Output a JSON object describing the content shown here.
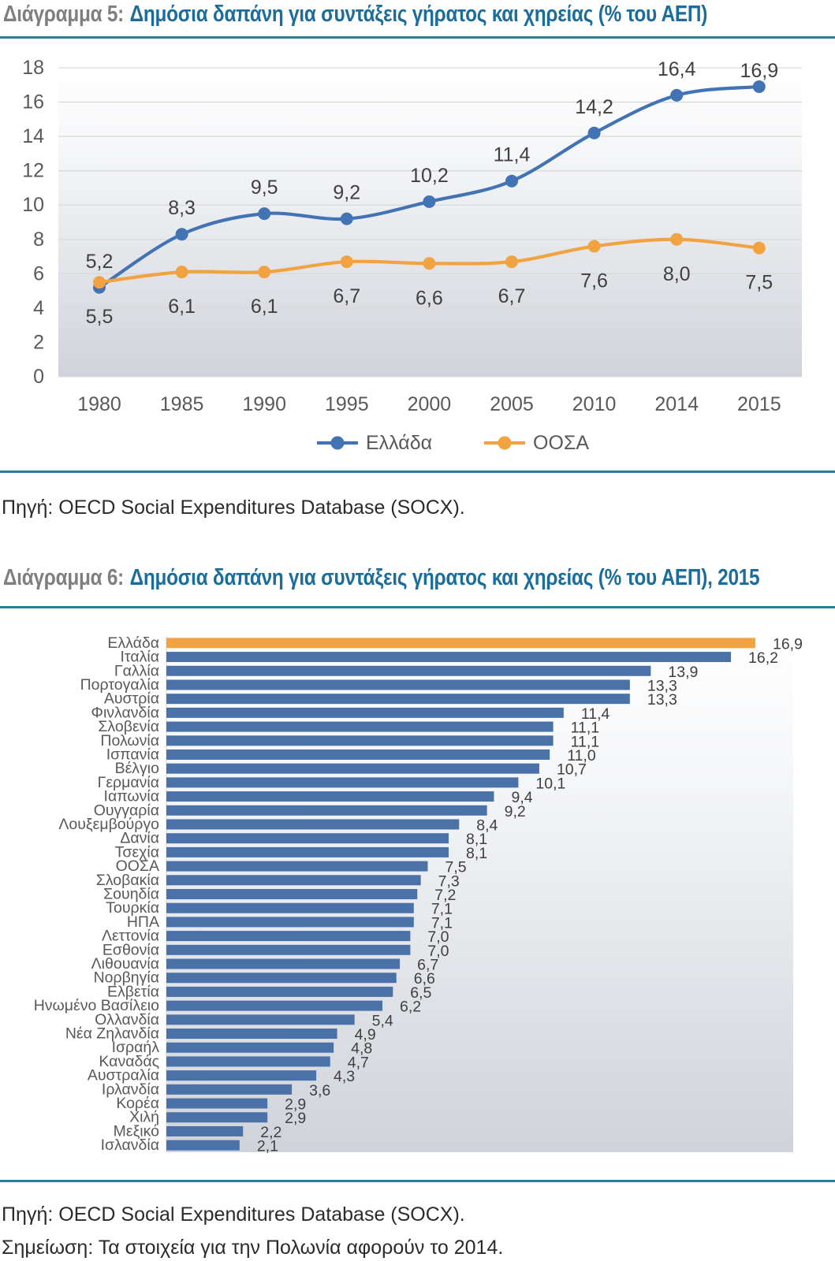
{
  "page": {
    "chart5": {
      "title_prefix": "Διάγραμμα 5:",
      "title_main": "Δημόσια δαπάνη για συντάξεις γήρατος και χηρείας (% του ΑΕΠ)",
      "source": "Πηγή: OECD Social Expenditures Database (SOCX)."
    },
    "chart6": {
      "title_prefix": "Διάγραμμα 6:",
      "title_main": "Δημόσια δαπάνη για συντάξεις γήρατος και χηρείας (% του ΑΕΠ), 2015",
      "source": "Πηγή: OECD Social Expenditures Database (SOCX).",
      "note": "Σημείωση: Τα στοιχεία για την Πολωνία αφορούν το 2014."
    }
  },
  "colors": {
    "title_accent": "#1b6d9c",
    "title_prefix": "#7f7f7f",
    "divider": "#27809b",
    "greece_line": "#4273b4",
    "oecd_line": "#f2a341",
    "bar_blue": "#4a72a8",
    "bar_highlight": "#f2a341",
    "gridline": "#d9d9d9",
    "axis_text": "#595959",
    "data_label": "#404040"
  },
  "chart_data": [
    {
      "type": "line",
      "title": "Δημόσια δαπάνη για συντάξεις γήρατος και χηρείας (% του ΑΕΠ)",
      "categories": [
        "1980",
        "1985",
        "1990",
        "1995",
        "2000",
        "2005",
        "2010",
        "2014",
        "2015"
      ],
      "series": [
        {
          "name": "Ελλάδα",
          "color": "#4273b4",
          "label_position": "above",
          "values": [
            5.2,
            8.3,
            9.5,
            9.2,
            10.2,
            11.4,
            14.2,
            16.4,
            16.9
          ]
        },
        {
          "name": "ΟΟΣΑ",
          "color": "#f2a341",
          "label_position": "below",
          "values": [
            5.5,
            6.1,
            6.1,
            6.7,
            6.6,
            6.7,
            7.6,
            8.0,
            7.5
          ]
        }
      ],
      "ylim": [
        0,
        18
      ],
      "ytick_step": 2,
      "grid": true,
      "legend_position": "bottom",
      "decimal_separator": ","
    },
    {
      "type": "bar",
      "orientation": "horizontal",
      "title": "Δημόσια δαπάνη για συντάξεις γήρατος και χηρείας (% του ΑΕΠ), 2015",
      "categories": [
        "Ελλάδα",
        "Ιταλία",
        "Γαλλία",
        "Πορτογαλία",
        "Αυστρία",
        "Φινλανδία",
        "Σλοβενία",
        "Πολωνία",
        "Ισπανία",
        "Βέλγιο",
        "Γερμανία",
        "Ιαπωνία",
        "Ουγγαρία",
        "Λουξεμβούργο",
        "Δανία",
        "Τσεχία",
        "ΟΟΣΑ",
        "Σλοβακία",
        "Σουηδία",
        "Τουρκία",
        "ΗΠΑ",
        "Λεττονία",
        "Εσθονία",
        "Λιθουανία",
        "Νορβηγία",
        "Ελβετία",
        "Ηνωμένο Βασίλειο",
        "Ολλανδία",
        "Νέα Ζηλανδία",
        "Ισραήλ",
        "Καναδάς",
        "Αυστραλία",
        "Ιρλανδία",
        "Κορέα",
        "Χιλή",
        "Μεξικό",
        "Ισλανδία"
      ],
      "values": [
        16.9,
        16.2,
        13.9,
        13.3,
        13.3,
        11.4,
        11.1,
        11.1,
        11.0,
        10.7,
        10.1,
        9.4,
        9.2,
        8.4,
        8.1,
        8.1,
        7.5,
        7.3,
        7.2,
        7.1,
        7.1,
        7.0,
        7.0,
        6.7,
        6.6,
        6.5,
        6.2,
        5.4,
        4.9,
        4.8,
        4.7,
        4.3,
        3.6,
        2.9,
        2.9,
        2.2,
        2.1
      ],
      "bar_color": "#4a72a8",
      "highlight": {
        "category": "Ελλάδα",
        "color": "#f2a341"
      },
      "xlim": [
        0,
        18
      ],
      "decimal_separator": ","
    }
  ]
}
